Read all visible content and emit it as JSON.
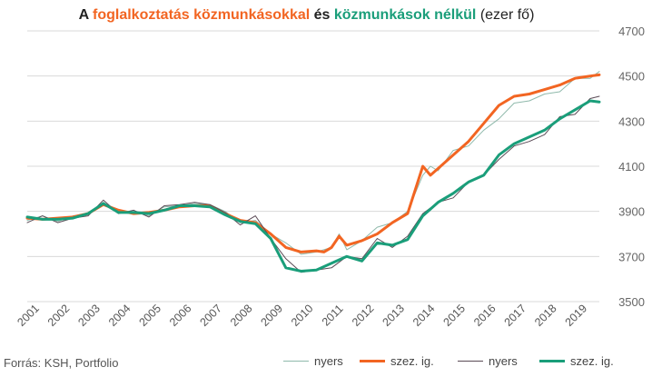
{
  "title": {
    "part1": "A ",
    "part2": "foglalkoztatás közmunkásokkal",
    "part3": " és ",
    "part4": "közmunkások nélkül",
    "part5": " (ezer fő)",
    "color_with": "#f26522",
    "color_without": "#1a9e7a"
  },
  "source": "Forrás: KSH, Portfolio",
  "legend": [
    {
      "label": "nyers",
      "color": "#8fb9ab",
      "width": 1
    },
    {
      "label": "szez. ig.",
      "color": "#f26522",
      "width": 3
    },
    {
      "label": "nyers",
      "color": "#5a4a55",
      "width": 1
    },
    {
      "label": "szez. ig.",
      "color": "#1a9e7a",
      "width": 3
    }
  ],
  "chart_data": {
    "type": "line",
    "x_ticks": [
      "2001",
      "2002",
      "2003",
      "2004",
      "2005",
      "2006",
      "2007",
      "2008",
      "2009",
      "2010",
      "2011",
      "2012",
      "2013",
      "2014",
      "2015",
      "2016",
      "2017",
      "2018",
      "2019"
    ],
    "x_range": [
      2001.0,
      2019.8
    ],
    "y_ticks": [
      3500,
      3700,
      3900,
      4100,
      4300,
      4500,
      4700
    ],
    "ylim": [
      3500,
      4700
    ],
    "y_axis_side": "right",
    "grid": "horizontal",
    "series": [
      {
        "name": "nyers",
        "group": "közmunkásokkal",
        "color": "#8fb9ab",
        "width": 1,
        "x": [
          2001.0,
          2001.5,
          2002.0,
          2002.5,
          2003.0,
          2003.5,
          2004.0,
          2004.5,
          2005.0,
          2005.5,
          2006.0,
          2006.5,
          2007.0,
          2007.5,
          2008.0,
          2008.5,
          2009.0,
          2009.5,
          2010.0,
          2010.5,
          2011.0,
          2011.25,
          2011.5,
          2012.0,
          2012.25,
          2012.5,
          2013.0,
          2013.5,
          2014.0,
          2014.25,
          2014.5,
          2015.0,
          2015.5,
          2016.0,
          2016.5,
          2017.0,
          2017.5,
          2018.0,
          2018.5,
          2019.0,
          2019.5,
          2019.8
        ],
        "values": [
          3860,
          3880,
          3855,
          3880,
          3890,
          3940,
          3895,
          3900,
          3880,
          3920,
          3925,
          3935,
          3930,
          3900,
          3850,
          3860,
          3800,
          3760,
          3710,
          3720,
          3740,
          3800,
          3730,
          3770,
          3800,
          3830,
          3850,
          3900,
          4060,
          4100,
          4080,
          4170,
          4190,
          4260,
          4310,
          4380,
          4390,
          4420,
          4430,
          4490,
          4490,
          4520
        ]
      },
      {
        "name": "szez. ig.",
        "group": "közmunkásokkal",
        "color": "#f26522",
        "width": 3,
        "x": [
          2001.0,
          2001.5,
          2002.0,
          2002.5,
          2003.0,
          2003.5,
          2004.0,
          2004.5,
          2005.0,
          2005.5,
          2006.0,
          2006.5,
          2007.0,
          2007.5,
          2008.0,
          2008.5,
          2009.0,
          2009.5,
          2010.0,
          2010.5,
          2010.75,
          2011.0,
          2011.25,
          2011.5,
          2012.0,
          2012.5,
          2013.0,
          2013.5,
          2014.0,
          2014.25,
          2014.5,
          2015.0,
          2015.5,
          2016.0,
          2016.5,
          2017.0,
          2017.5,
          2018.0,
          2018.5,
          2019.0,
          2019.5,
          2019.8
        ],
        "values": [
          3870,
          3865,
          3870,
          3875,
          3890,
          3930,
          3905,
          3890,
          3895,
          3905,
          3920,
          3925,
          3925,
          3890,
          3860,
          3850,
          3800,
          3740,
          3720,
          3725,
          3720,
          3740,
          3790,
          3750,
          3770,
          3800,
          3850,
          3890,
          4100,
          4060,
          4090,
          4150,
          4210,
          4290,
          4370,
          4410,
          4420,
          4440,
          4460,
          4490,
          4500,
          4505
        ]
      },
      {
        "name": "nyers",
        "group": "közmunkások nélkül",
        "color": "#5a4a55",
        "width": 1,
        "x": [
          2001.0,
          2001.5,
          2002.0,
          2002.5,
          2003.0,
          2003.5,
          2004.0,
          2004.5,
          2005.0,
          2005.5,
          2006.0,
          2006.5,
          2007.0,
          2007.5,
          2008.0,
          2008.5,
          2009.0,
          2009.5,
          2010.0,
          2010.5,
          2011.0,
          2011.5,
          2012.0,
          2012.5,
          2013.0,
          2013.5,
          2014.0,
          2014.5,
          2015.0,
          2015.5,
          2016.0,
          2016.5,
          2017.0,
          2017.5,
          2018.0,
          2018.5,
          2019.0,
          2019.5,
          2019.8
        ],
        "values": [
          3850,
          3880,
          3850,
          3870,
          3880,
          3950,
          3890,
          3905,
          3875,
          3925,
          3930,
          3940,
          3930,
          3895,
          3840,
          3880,
          3780,
          3690,
          3630,
          3640,
          3650,
          3700,
          3690,
          3780,
          3740,
          3790,
          3890,
          3940,
          3960,
          4030,
          4060,
          4130,
          4190,
          4210,
          4240,
          4320,
          4330,
          4400,
          4410
        ]
      },
      {
        "name": "szez. ig.",
        "group": "közmunkások nélkül",
        "color": "#1a9e7a",
        "width": 3,
        "x": [
          2001.0,
          2001.5,
          2002.0,
          2002.5,
          2003.0,
          2003.5,
          2004.0,
          2004.5,
          2005.0,
          2005.5,
          2006.0,
          2006.5,
          2007.0,
          2007.5,
          2008.0,
          2008.5,
          2009.0,
          2009.5,
          2010.0,
          2010.5,
          2011.0,
          2011.5,
          2012.0,
          2012.5,
          2013.0,
          2013.5,
          2014.0,
          2014.5,
          2015.0,
          2015.5,
          2016.0,
          2016.5,
          2017.0,
          2017.5,
          2018.0,
          2018.5,
          2019.0,
          2019.5,
          2019.8
        ],
        "values": [
          3875,
          3865,
          3865,
          3870,
          3890,
          3935,
          3895,
          3895,
          3890,
          3905,
          3925,
          3925,
          3920,
          3885,
          3855,
          3845,
          3780,
          3650,
          3635,
          3640,
          3670,
          3700,
          3680,
          3760,
          3750,
          3775,
          3880,
          3940,
          3980,
          4030,
          4060,
          4150,
          4200,
          4230,
          4260,
          4310,
          4350,
          4390,
          4385
        ]
      }
    ]
  }
}
